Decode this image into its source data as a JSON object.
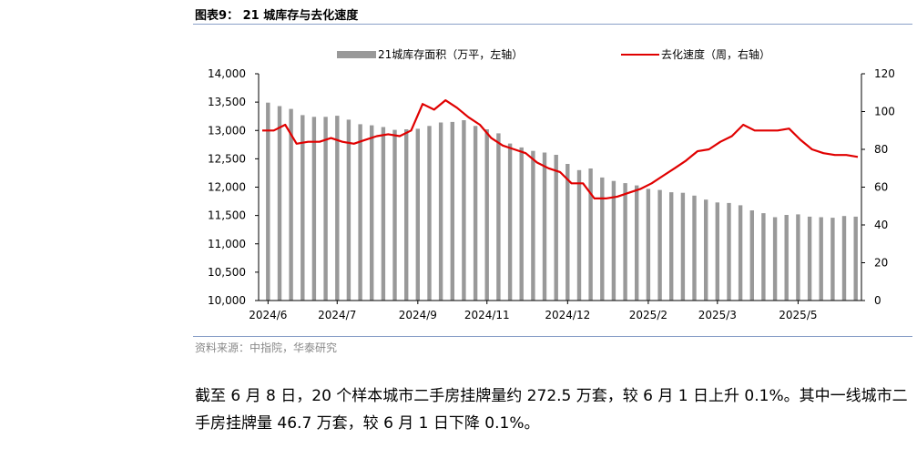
{
  "figure_title": "图表9： 21 城库存与去化速度",
  "source_note": "资料来源：中指院，华泰研究",
  "body_text": "截至 6 月 8 日，20 个样本城市二手房挂牌量约 272.5 万套，较 6 月 1 日上升 0.1%。其中一线城市二手房挂牌量 46.7 万套，较 6 月 1 日下降 0.1%。",
  "chart_data": {
    "type": "bar+line",
    "legend_placement": "top",
    "grid": false,
    "x_tick_labels": [
      "2024/6",
      "2024/7",
      "2024/9",
      "2024/11",
      "2024/12",
      "2025/2",
      "2025/3",
      "2025/5"
    ],
    "x_tick_positions": [
      0,
      6,
      13,
      19,
      26,
      33,
      39,
      46
    ],
    "left_axis": {
      "ylim": [
        10000,
        14000
      ],
      "ticks": [
        "10,000",
        "10,500",
        "11,000",
        "11,500",
        "12,000",
        "12,500",
        "13,000",
        "13,500",
        "14,000"
      ]
    },
    "right_axis": {
      "ylim": [
        0,
        120
      ],
      "ticks": [
        "0",
        "20",
        "40",
        "60",
        "80",
        "100",
        "120"
      ]
    },
    "series": [
      {
        "name": "21城库存面积（万平，左轴）",
        "type": "bar",
        "axis": "left",
        "color": "#999999",
        "values": [
          13490,
          13430,
          13380,
          13270,
          13240,
          13240,
          13260,
          13190,
          13110,
          13090,
          13060,
          13010,
          13020,
          13030,
          13080,
          13140,
          13150,
          13180,
          13080,
          13020,
          12950,
          12770,
          12700,
          12640,
          12610,
          12570,
          12410,
          12300,
          12330,
          12170,
          12110,
          12070,
          12030,
          11970,
          11950,
          11910,
          11900,
          11850,
          11780,
          11730,
          11720,
          11680,
          11590,
          11540,
          11470,
          11510,
          11520,
          11480,
          11470,
          11460,
          11490,
          11480
        ]
      },
      {
        "name": "去化速度（周，右轴）",
        "type": "line",
        "axis": "right",
        "color": "#e00000",
        "values": [
          90,
          90,
          93,
          83,
          84,
          84,
          86,
          84,
          83,
          85,
          87,
          88,
          87,
          90,
          104,
          101,
          106,
          102,
          97,
          93,
          86,
          82,
          80,
          78,
          73,
          70,
          68,
          62,
          62,
          54,
          54,
          55,
          57,
          59,
          62,
          66,
          70,
          74,
          79,
          80,
          84,
          87,
          93,
          90,
          90,
          90,
          91,
          85,
          80,
          78,
          77,
          77,
          76
        ]
      }
    ]
  }
}
